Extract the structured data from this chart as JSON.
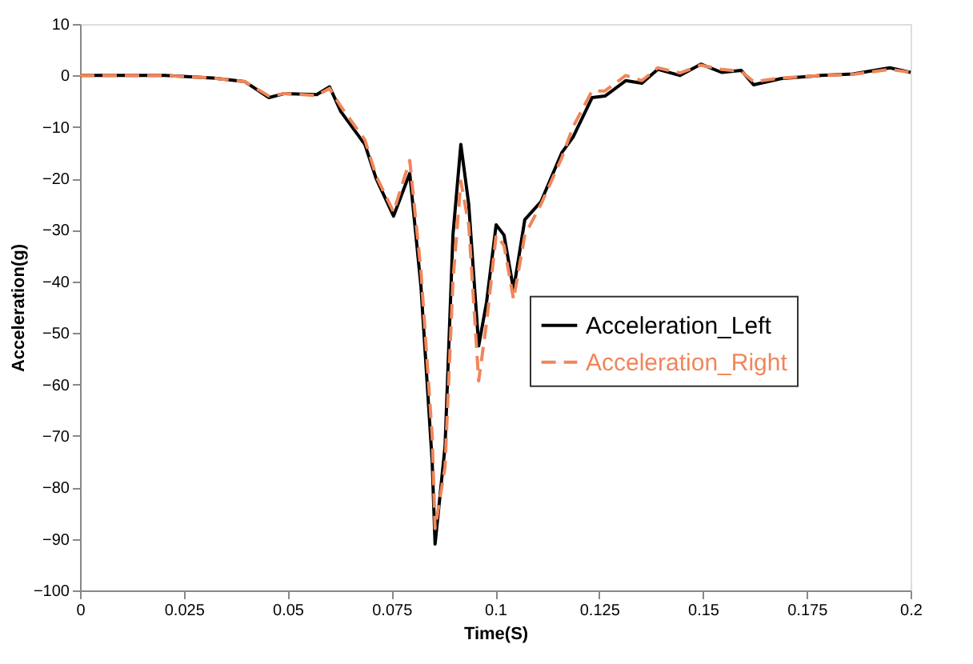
{
  "chart_data": {
    "type": "line",
    "xlabel": "Time(S)",
    "ylabel": "Acceleration(g)",
    "x": [
      0,
      0.0204,
      0.032,
      0.0397,
      0.0455,
      0.0493,
      0.057,
      0.0601,
      0.0628,
      0.0686,
      0.0713,
      0.0755,
      0.0794,
      0.0821,
      0.0848,
      0.0855,
      0.0879,
      0.0898,
      0.0917,
      0.0936,
      0.096,
      0.0979,
      0.1002,
      0.1021,
      0.1044,
      0.1071,
      0.111,
      0.116,
      0.1187,
      0.1233,
      0.1264,
      0.1314,
      0.1353,
      0.1391,
      0.1445,
      0.1495,
      0.1545,
      0.1592,
      0.1622,
      0.1688,
      0.1784,
      0.1861,
      0.195,
      0.2
    ],
    "series": [
      {
        "name": "Acceleration_Left",
        "color": "#000000",
        "line_style": "solid",
        "values": [
          0,
          0,
          -0.5,
          -1.2,
          -4.3,
          -3.5,
          -3.7,
          -2.2,
          -7,
          -13.4,
          -20,
          -27.3,
          -19,
          -41,
          -75,
          -91,
          -72,
          -31,
          -13.4,
          -25,
          -52.5,
          -44,
          -29,
          -31,
          -41.6,
          -28,
          -24.5,
          -15,
          -12,
          -4.3,
          -4,
          -1,
          -1.5,
          1.2,
          0,
          2.2,
          0.6,
          1,
          -1.8,
          -0.6,
          0,
          0.3,
          1.5,
          0.6
        ]
      },
      {
        "name": "Acceleration_Right",
        "color": "#f0865a",
        "line_style": "dashed",
        "values": [
          0,
          0,
          -0.5,
          -1.2,
          -4,
          -3.5,
          -3.9,
          -2.5,
          -6,
          -12.5,
          -19.5,
          -26.5,
          -16.5,
          -38,
          -70,
          -88,
          -76,
          -40,
          -20.5,
          -29,
          -59.3,
          -48,
          -31,
          -33,
          -43.5,
          -31,
          -25,
          -16,
          -10,
          -3,
          -3,
          0,
          -1,
          1.5,
          0.5,
          2,
          1.2,
          0.8,
          -1.2,
          -0.5,
          0,
          0.2,
          1.2,
          0.6
        ]
      }
    ],
    "xlim": [
      0,
      0.2
    ],
    "xticks": [
      0,
      0.025,
      0.05,
      0.075,
      0.1,
      0.125,
      0.15,
      0.175,
      0.2
    ],
    "ylim": [
      -100,
      10
    ],
    "yticks": [
      -100,
      -90,
      -80,
      -70,
      -60,
      -50,
      -40,
      -30,
      -20,
      -10,
      0,
      10
    ],
    "grid": false,
    "legend": "right"
  }
}
